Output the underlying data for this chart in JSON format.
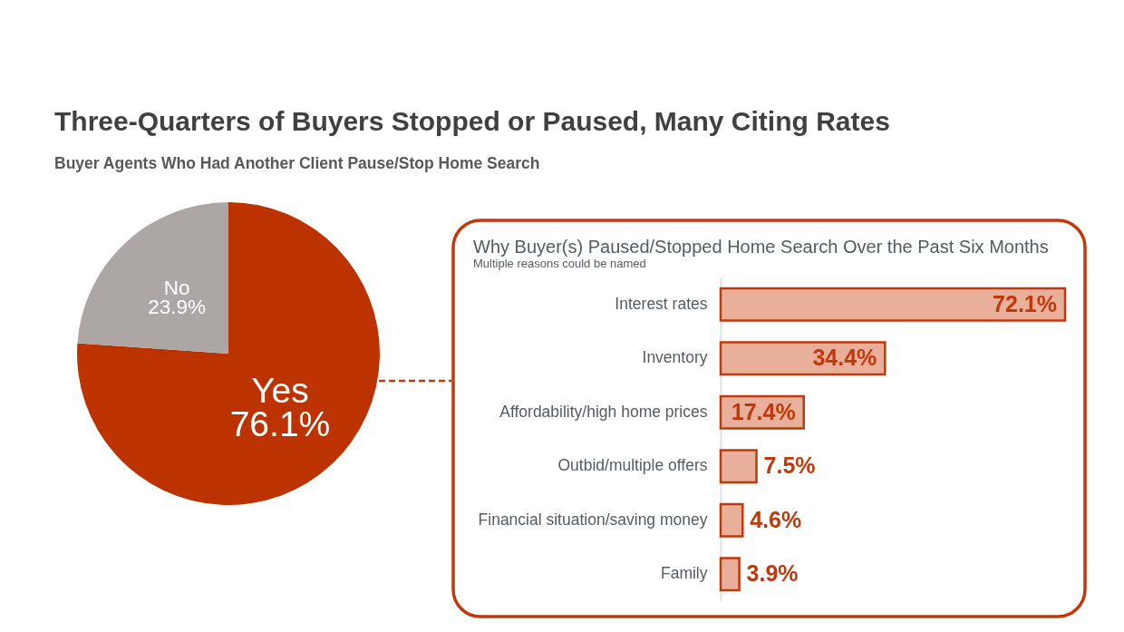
{
  "chart_data": [
    {
      "type": "pie",
      "title": "Three-Quarters of Buyers Stopped or Paused, Many Citing Rates",
      "subtitle": "Buyer Agents Who Had Another Client Pause/Stop Home Search",
      "categories": [
        "Yes",
        "No"
      ],
      "values": [
        76.1,
        23.9
      ],
      "colors": [
        "#bd3300",
        "#aca7a5"
      ],
      "value_labels": [
        "76.1%",
        "23.9%"
      ]
    },
    {
      "type": "bar",
      "orientation": "horizontal",
      "title": "Why Buyer(s) Paused/Stopped Home Search Over the Past Six Months",
      "subtitle": "Multiple reasons could be named",
      "categories": [
        "Interest rates",
        "Inventory",
        "Affordability/high home prices",
        "Outbid/multiple offers",
        "Financial situation/saving money",
        "Family"
      ],
      "values": [
        72.1,
        34.4,
        17.4,
        7.5,
        4.6,
        3.9
      ],
      "color": "#e8af9a",
      "value_labels": [
        "72.1%",
        "34.4%",
        "17.4%",
        "7.5%",
        "4.6%",
        "3.9%"
      ],
      "tick_labels": "y"
    }
  ]
}
